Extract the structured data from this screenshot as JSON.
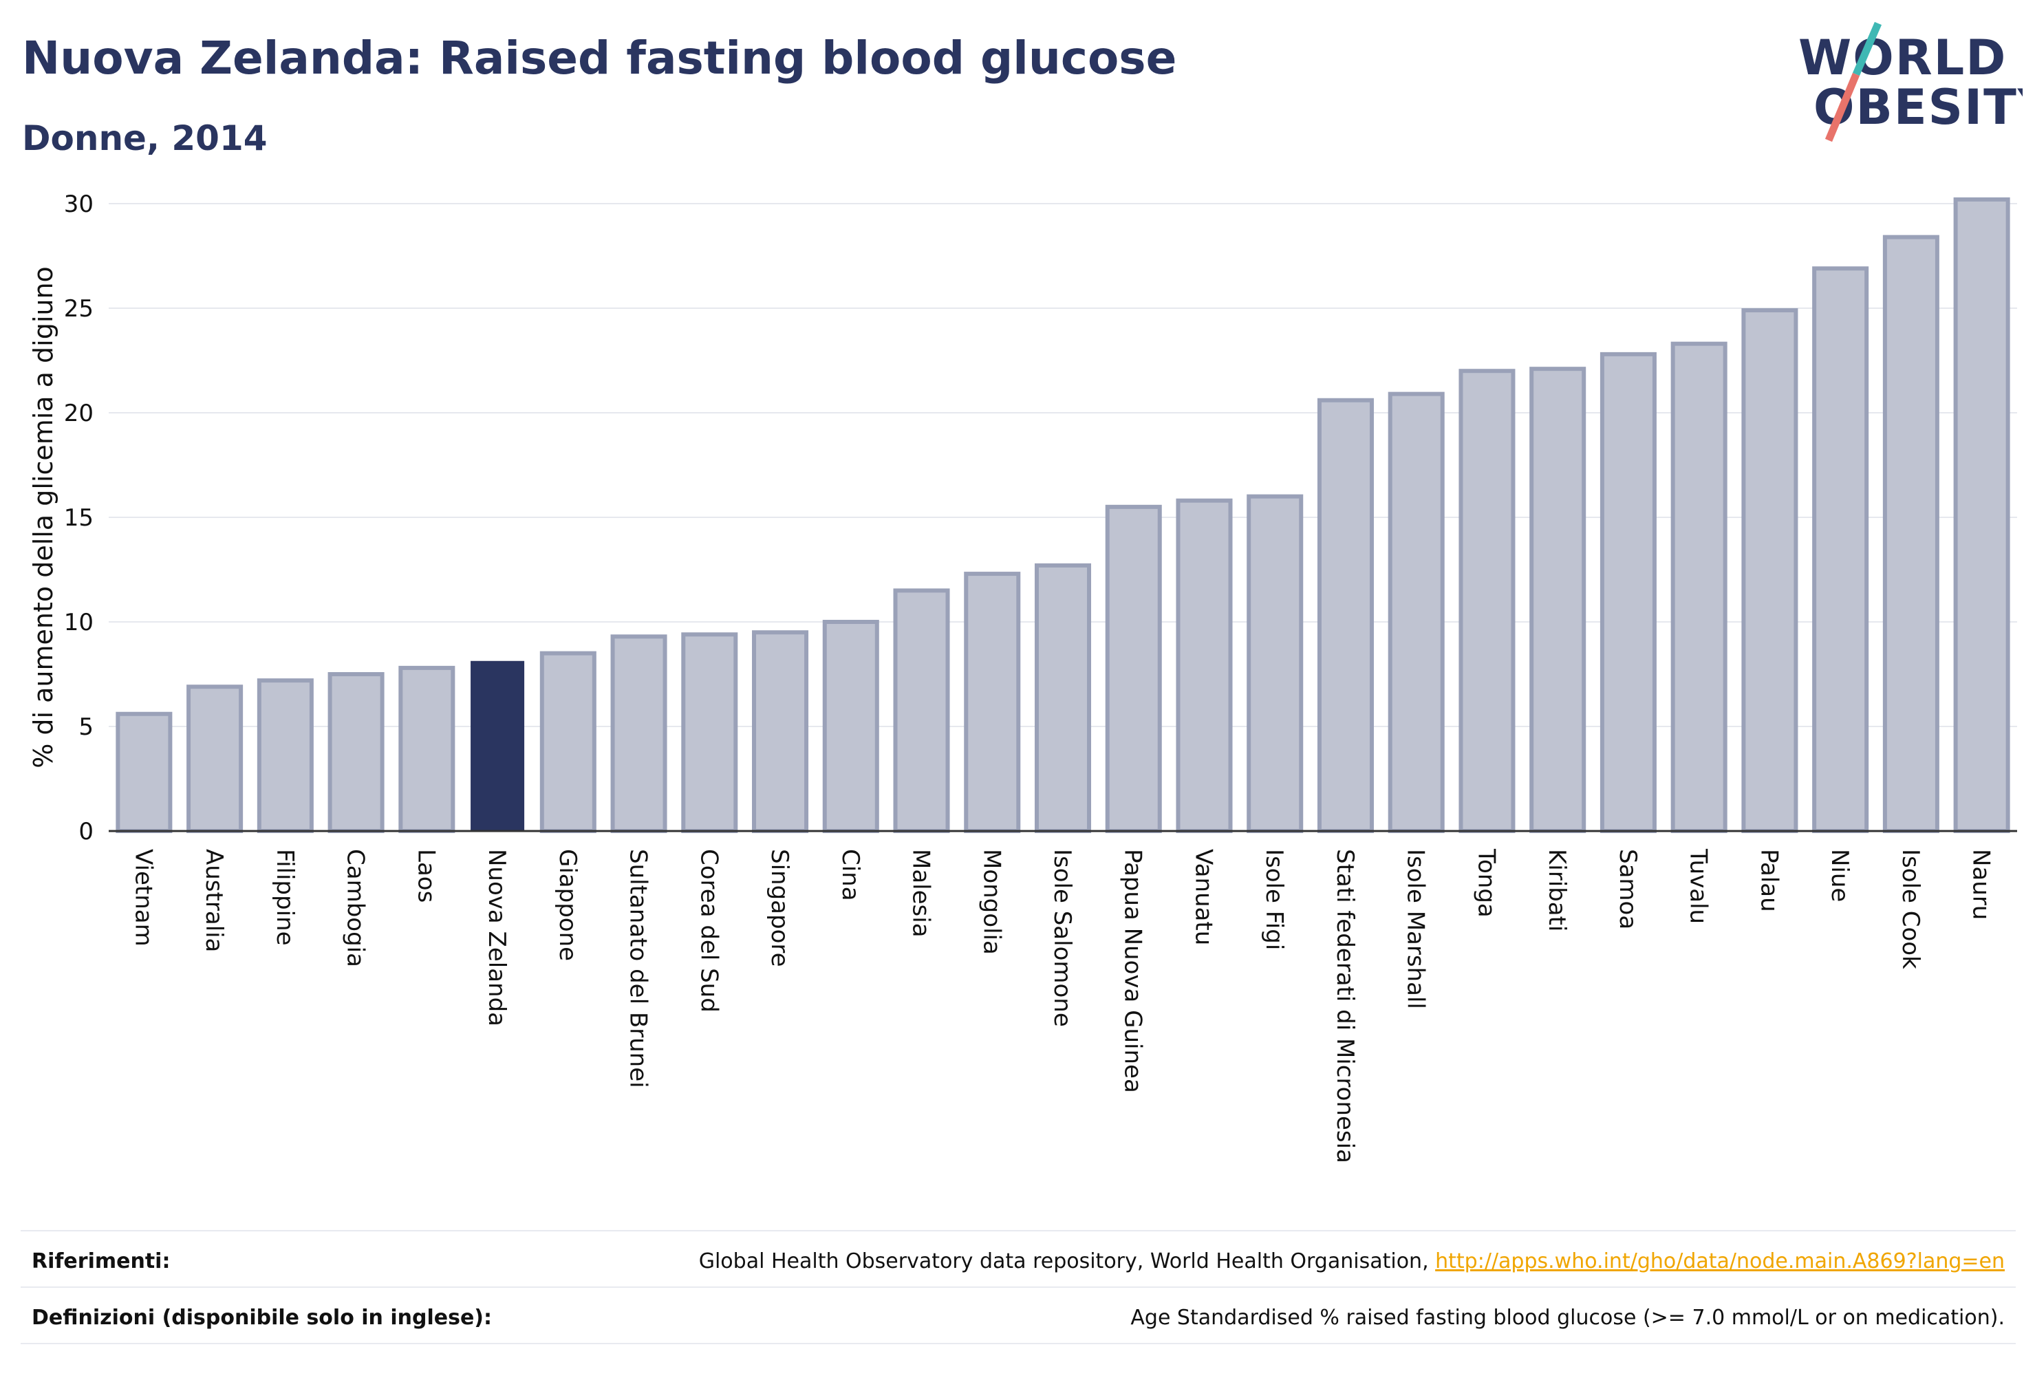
{
  "title": "Nuova Zelanda: Raised fasting blood glucose",
  "subtitle": "Donne, 2014",
  "logo": {
    "line1": "WORLD",
    "line2": "OBESITY"
  },
  "colors": {
    "bar_fill": "#bfc3d1",
    "bar_stroke": "#9aa1b8",
    "highlight": "#2a3560",
    "title": "#2a3560",
    "logo_teal": "#3fb8b4",
    "logo_coral": "#e8736a",
    "link": "#f0a500"
  },
  "chart_data": {
    "type": "bar",
    "ylabel": "% di aumento della glicemia a digiuno",
    "xlabel": "",
    "ylim": [
      0,
      30
    ],
    "yticks": [
      0,
      5,
      10,
      15,
      20,
      25,
      30
    ],
    "grid": true,
    "highlight": "Nuova Zelanda",
    "categories": [
      "Vietnam",
      "Australia",
      "Filippine",
      "Cambogia",
      "Laos",
      "Nuova Zelanda",
      "Giappone",
      "Sultanato del Brunei",
      "Corea del Sud",
      "Singapore",
      "Cina",
      "Malesia",
      "Mongolia",
      "Isole Salomone",
      "Papua Nuova Guinea",
      "Vanuatu",
      "Isole Figi",
      "Stati federati di Micronesia",
      "Isole Marshall",
      "Tonga",
      "Kiribati",
      "Samoa",
      "Tuvalu",
      "Palau",
      "Niue",
      "Isole Cook",
      "Nauru"
    ],
    "values": [
      5.6,
      6.9,
      7.2,
      7.5,
      7.8,
      8.1,
      8.5,
      9.3,
      9.4,
      9.5,
      10.0,
      11.5,
      12.3,
      12.7,
      15.5,
      15.8,
      16.0,
      20.6,
      20.9,
      22.0,
      22.1,
      22.8,
      23.3,
      24.9,
      26.9,
      28.4,
      30.2
    ]
  },
  "footer": {
    "references_label": "Riferimenti:",
    "references_text": "Global Health Observatory data repository, World Health Organisation, ",
    "references_link": "http://apps.who.int/gho/data/node.main.A869?lang=en",
    "definitions_label": "Definizioni (disponibile solo in inglese):",
    "definitions_text": "Age Standardised % raised fasting blood glucose (>= 7.0 mmol/L or on medication)."
  }
}
